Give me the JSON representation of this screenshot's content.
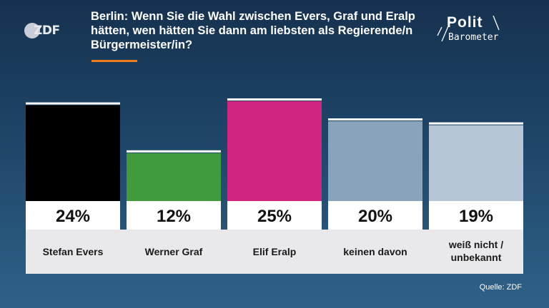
{
  "header": {
    "title": "Berlin: Wenn Sie die Wahl zwischen Evers, Graf und Eralp hätten, wen hätten Sie dann am liebsten als Regierende/n Bürgermeister/in?",
    "zdf_logo": "ZDF",
    "politbarometer_line1": "Polit",
    "politbarometer_line2": "Barometer"
  },
  "source": "Quelle: ZDF",
  "colors": {
    "title_accent": "#f07c1e",
    "value_box": "#ffffff",
    "label_band": "#e9e9ec"
  },
  "chart_data": {
    "type": "bar",
    "categories": [
      "Stefan Evers",
      "Werner Graf",
      "Elif Eralp",
      "keinen davon",
      "weiß nicht / unbekannt"
    ],
    "values": [
      24,
      12,
      25,
      20,
      19
    ],
    "value_labels": [
      "24%",
      "12%",
      "25%",
      "20%",
      "19%"
    ],
    "unit": "%",
    "colors": [
      "#000000",
      "#3f9b3c",
      "#d0267f",
      "#8aa3bc",
      "#b6c6d6"
    ],
    "grid": false,
    "legend": "none"
  }
}
